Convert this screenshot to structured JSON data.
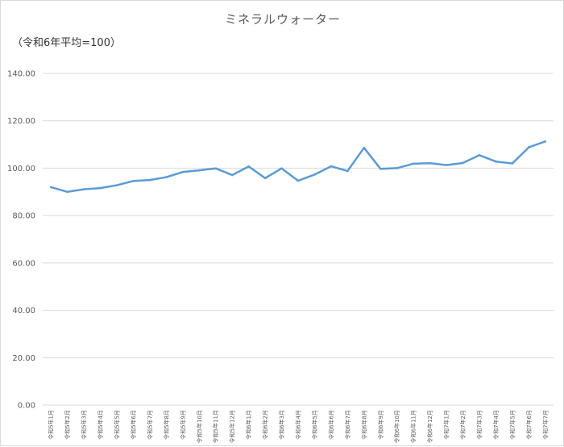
{
  "chart_data": {
    "type": "line",
    "title": "ミネラルウォーター",
    "subtitle": "（令和6年平均=100）",
    "ylim": [
      0,
      140
    ],
    "yticks": [
      "0.00",
      "20.00",
      "40.00",
      "60.00",
      "80.00",
      "100.00",
      "120.00",
      "140.00"
    ],
    "grid": true,
    "legend": "none",
    "categories": [
      "令和5年1月",
      "令和5年2月",
      "令和5年3月",
      "令和5年4月",
      "令和5年5月",
      "令和5年6月",
      "令和5年7月",
      "令和5年8月",
      "令和5年9月",
      "令和5年10月",
      "令和5年11月",
      "令和5年12月",
      "令和6年1月",
      "令和6年2月",
      "令和6年3月",
      "令和6年4月",
      "令和6年5月",
      "令和6年6月",
      "令和6年7月",
      "令和6年8月",
      "令和6年9月",
      "令和6年10月",
      "令和6年11月",
      "令和6年12月",
      "令和7年1月",
      "令和7年2月",
      "令和7年3月",
      "令和7年4月",
      "令和7年5月",
      "令和7年6月",
      "令和7年7月"
    ],
    "series": [
      {
        "name": "",
        "color": "#5b9bd5",
        "values": [
          92.0,
          90.0,
          91.1,
          91.6,
          92.8,
          94.6,
          95.0,
          96.2,
          98.4,
          99.1,
          99.9,
          97.1,
          100.7,
          95.8,
          99.9,
          94.7,
          97.3,
          100.8,
          98.8,
          108.6,
          99.7,
          100.0,
          101.9,
          102.1,
          101.3,
          102.2,
          105.5,
          102.8,
          102.0,
          108.8,
          111.3
        ]
      }
    ]
  }
}
